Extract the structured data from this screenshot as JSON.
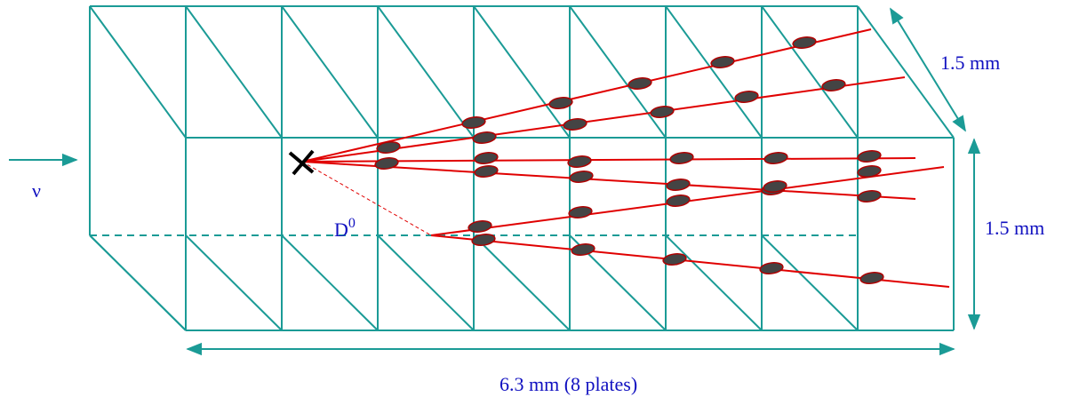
{
  "labels": {
    "neutrino": "ν",
    "d_meson": "D",
    "d_meson_charge": "0",
    "depth": "1.5 mm",
    "height": "1.5 mm",
    "length": "6.3 mm (8 plates)"
  }
}
